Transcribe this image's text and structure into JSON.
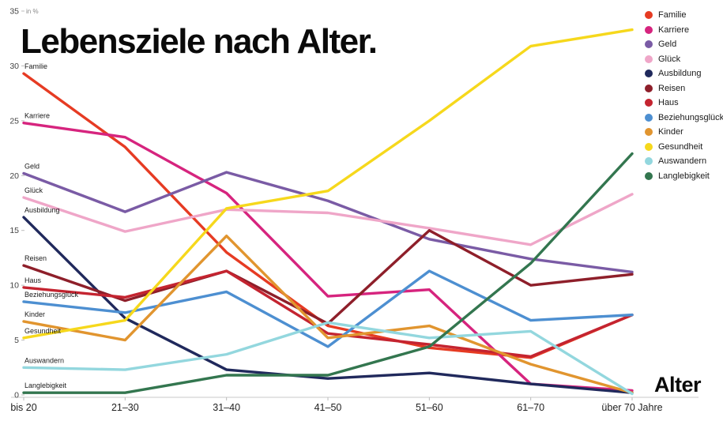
{
  "title": "Lebensziele nach Alter.",
  "y_axis_unit_label": "in %",
  "x_axis_label": "Alter",
  "chart_data": {
    "type": "line",
    "categories": [
      "bis 20",
      "21–30",
      "31–40",
      "41–50",
      "51–60",
      "61–70",
      "über 70 Jahre"
    ],
    "y_ticks": [
      0,
      5,
      10,
      15,
      20,
      25,
      30,
      35
    ],
    "ylim": [
      0,
      35
    ],
    "grid": false,
    "legend_position": "top-right",
    "series": [
      {
        "name": "Familie",
        "color": "#e63b23",
        "values": [
          29.3,
          22.6,
          13.0,
          6.3,
          4.3,
          3.4,
          7.3
        ]
      },
      {
        "name": "Karriere",
        "color": "#d6247e",
        "values": [
          24.8,
          23.5,
          18.4,
          9.0,
          9.6,
          1.0,
          0.4
        ]
      },
      {
        "name": "Geld",
        "color": "#7a5ba5",
        "values": [
          20.2,
          16.7,
          20.3,
          17.7,
          14.2,
          12.4,
          11.2
        ]
      },
      {
        "name": "Glück",
        "color": "#efa6c8",
        "values": [
          18.0,
          14.9,
          16.9,
          16.6,
          15.2,
          13.7,
          18.3
        ]
      },
      {
        "name": "Ausbildung",
        "color": "#20295c",
        "values": [
          16.2,
          7.0,
          2.3,
          1.5,
          2.0,
          1.0,
          0.2
        ]
      },
      {
        "name": "Reisen",
        "color": "#8e1f2a",
        "values": [
          11.8,
          8.6,
          11.3,
          6.5,
          15.0,
          10.0,
          11.0
        ]
      },
      {
        "name": "Haus",
        "color": "#c42430",
        "values": [
          9.8,
          8.9,
          11.3,
          5.6,
          4.6,
          3.5,
          7.3
        ]
      },
      {
        "name": "Beziehungsglück",
        "color": "#4d8fd1",
        "values": [
          8.5,
          7.5,
          9.4,
          4.4,
          11.3,
          6.8,
          7.3
        ]
      },
      {
        "name": "Kinder",
        "color": "#e1952f",
        "values": [
          6.7,
          5.0,
          14.5,
          5.2,
          6.3,
          2.8,
          0.2
        ]
      },
      {
        "name": "Gesundheit",
        "color": "#f6d81c",
        "values": [
          5.2,
          6.8,
          17.0,
          18.6,
          25.0,
          31.8,
          33.3
        ]
      },
      {
        "name": "Auswandern",
        "color": "#93d7de",
        "values": [
          2.5,
          2.3,
          3.7,
          6.6,
          5.2,
          5.8,
          0.1
        ]
      },
      {
        "name": "Langlebigkeit",
        "color": "#33764f",
        "values": [
          0.2,
          0.2,
          1.8,
          1.8,
          4.4,
          12.0,
          22.0
        ]
      }
    ]
  }
}
